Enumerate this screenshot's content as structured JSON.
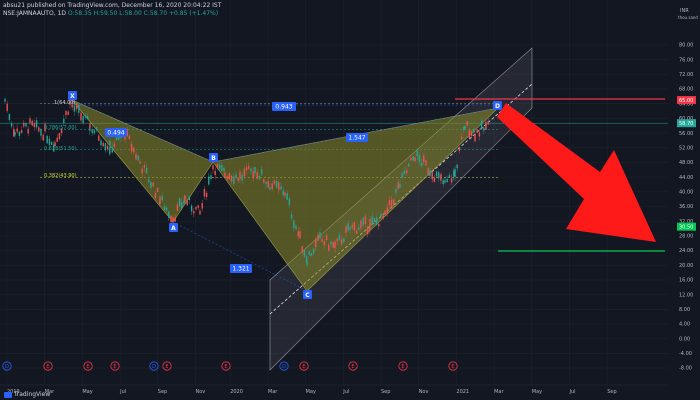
{
  "header": {
    "publisher_line": "absu21 published on TradingView.com, December 16, 2020 20:04:22 IST",
    "symbol": "NSE:JAMNAAUTO, 1D",
    "last": "58.70",
    "change": "+0.85 (+1.47%)",
    "ohlc": "O:58.35 H:59.50 L:58.00 C:58.70"
  },
  "price_axis": {
    "currency": "INR",
    "unit": "thou.sand",
    "ticks": [
      "80.00",
      "76.00",
      "72.00",
      "68.00",
      "64.00",
      "60.00",
      "56.00",
      "52.00",
      "48.00",
      "44.00",
      "40.00",
      "36.00",
      "32.00",
      "28.00",
      "24.00",
      "20.00",
      "16.00",
      "12.00",
      "8.00",
      "4.00",
      "0.00",
      "-4.00",
      "-8.00"
    ],
    "tags": [
      {
        "label": "65.00",
        "price": 65,
        "color": "#f23645"
      },
      {
        "label": "58.70",
        "price": 58.7,
        "color": "#26a69a"
      },
      {
        "label": "30.50",
        "price": 30.5,
        "color": "#00c853"
      }
    ]
  },
  "time_axis": {
    "ticks": [
      "2019",
      "Mar",
      "May",
      "Jul",
      "Sep",
      "Nov",
      "2020",
      "Mar",
      "May",
      "Jul",
      "Sep",
      "Nov",
      "2021",
      "Mar",
      "May",
      "Jul",
      "Sep"
    ]
  },
  "fib_levels": [
    {
      "label": "1(64.00)",
      "price": 64.0
    },
    {
      "label": "0.786(57.00)",
      "price": 57.0
    },
    {
      "label": "0.618(51.50)",
      "price": 51.5
    },
    {
      "label": "0.382(43.90)",
      "price": 43.9
    }
  ],
  "pattern": {
    "points": [
      {
        "id": "X",
        "label": "X"
      },
      {
        "id": "A",
        "label": "A"
      },
      {
        "id": "B",
        "label": "B"
      },
      {
        "id": "C",
        "label": "C"
      },
      {
        "id": "D",
        "label": "D"
      }
    ],
    "ratios": [
      "0.943",
      "0.494",
      "1.547",
      "1.321"
    ]
  },
  "events": [
    {
      "label": "D",
      "color": "#2962ff"
    },
    {
      "label": "E",
      "color": "#f23645"
    },
    {
      "label": "E",
      "color": "#f23645"
    },
    {
      "label": "E",
      "color": "#f23645"
    },
    {
      "label": "D",
      "color": "#2962ff"
    },
    {
      "label": "E",
      "color": "#f23645"
    },
    {
      "label": "E",
      "color": "#f23645"
    },
    {
      "label": "D",
      "color": "#2962ff"
    },
    {
      "label": "E",
      "color": "#f23645"
    },
    {
      "label": "E",
      "color": "#f23645"
    },
    {
      "label": "E",
      "color": "#f23645"
    },
    {
      "label": "E",
      "color": "#f23645"
    }
  ],
  "footer": {
    "brand": "TradingView"
  },
  "colors": {
    "background": "#131722",
    "up": "#26a69a",
    "down": "#ef5350",
    "pattern_fill": "#7a7a28",
    "arrow": "#ff1a1a"
  }
}
